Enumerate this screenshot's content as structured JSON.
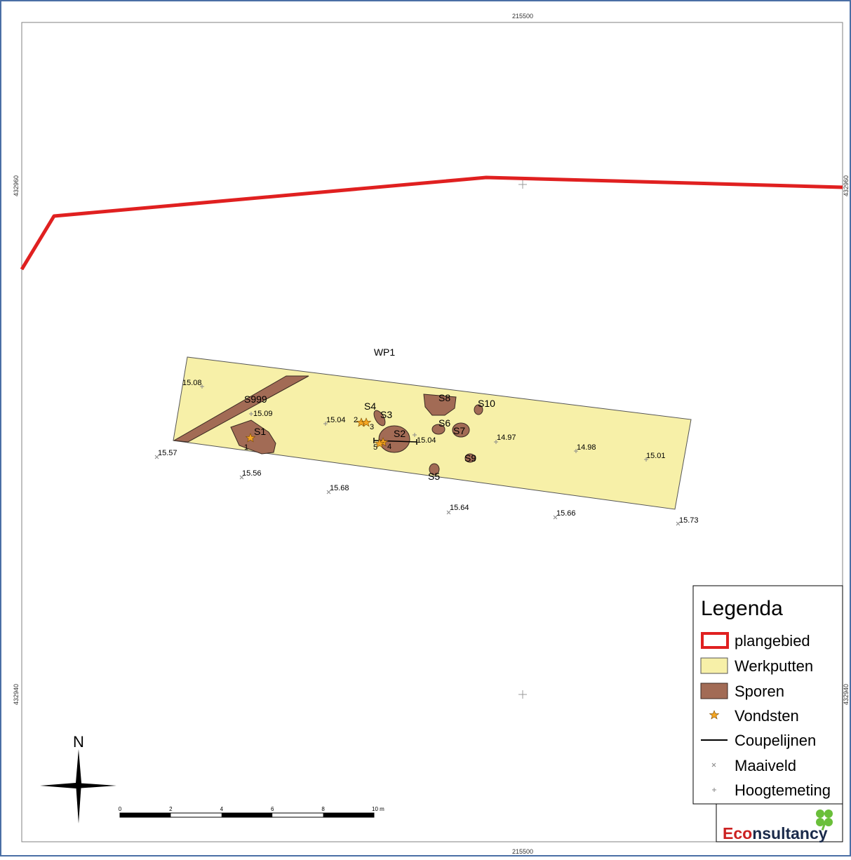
{
  "grid": {
    "x_label": "215500",
    "y_label_top": "432960",
    "y_label_bottom": "432940"
  },
  "trench": {
    "name": "WP1"
  },
  "features": [
    {
      "label": "S999"
    },
    {
      "label": "S1"
    },
    {
      "label": "S2"
    },
    {
      "label": "S3"
    },
    {
      "label": "S4"
    },
    {
      "label": "S5"
    },
    {
      "label": "S6"
    },
    {
      "label": "S7"
    },
    {
      "label": "S8"
    },
    {
      "label": "S9"
    },
    {
      "label": "S10"
    }
  ],
  "finds": [
    "1",
    "2",
    "3",
    "4",
    "5"
  ],
  "maaiveld": [
    "15.57",
    "15.56",
    "15.68",
    "15.64",
    "15.66",
    "15.73"
  ],
  "hoogtemeting": [
    "15.08",
    "15.09",
    "15.04",
    "15.04",
    "14.97",
    "14.98",
    "15.01"
  ],
  "north_arrow": {
    "label": "N"
  },
  "scale_bar": {
    "ticks": [
      "0",
      "2",
      "4",
      "6",
      "8",
      "10 m"
    ]
  },
  "legend": {
    "title": "Legenda",
    "items": [
      {
        "label": "plangebied"
      },
      {
        "label": "Werkputten"
      },
      {
        "label": "Sporen"
      },
      {
        "label": "Vondsten"
      },
      {
        "label": "Coupelijnen"
      },
      {
        "label": "Maaiveld"
      },
      {
        "label": "Hoogtemeting"
      }
    ]
  },
  "logo": {
    "brand_prefix": "Eco",
    "brand_suffix": "nsultancy"
  },
  "colors": {
    "plangebied": "#e02020",
    "werkputten": "#f7f0a8",
    "sporen": "#a26b55",
    "vondsten": "#f5a623",
    "frame": "#4a6fa5",
    "logo_red": "#cc2222",
    "logo_green": "#6abf3a"
  }
}
